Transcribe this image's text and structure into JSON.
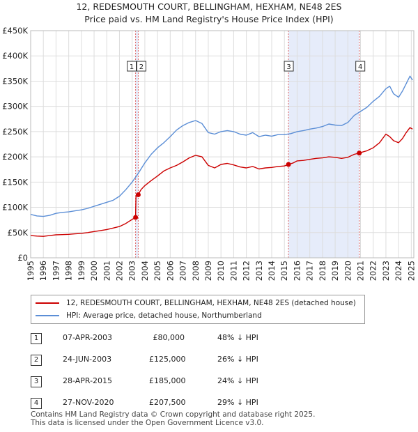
{
  "header": {
    "title": "12, REDESMOUTH COURT, BELLINGHAM, HEXHAM, NE48 2ES",
    "subtitle": "Price paid vs. HM Land Registry's House Price Index (HPI)"
  },
  "colors": {
    "property_line": "#cc0000",
    "hpi_line": "#5b8ed6",
    "shade": "#dde6f8",
    "marker_line": "#dd6666"
  },
  "chart_data": {
    "type": "line",
    "title": "Price paid vs. HM Land Registry's House Price Index (HPI)",
    "xlim": [
      1995,
      2025.2
    ],
    "ylim": [
      0,
      450000
    ],
    "x_ticks": [
      "1995",
      "1996",
      "1997",
      "1998",
      "1999",
      "2000",
      "2001",
      "2002",
      "2003",
      "2004",
      "2005",
      "2006",
      "2007",
      "2008",
      "2009",
      "2010",
      "2011",
      "2012",
      "2013",
      "2014",
      "2015",
      "2016",
      "2017",
      "2018",
      "2019",
      "2020",
      "2021",
      "2022",
      "2023",
      "2024",
      "2025"
    ],
    "y_ticks": [
      {
        "value": 0,
        "label": "£0"
      },
      {
        "value": 50000,
        "label": "£50K"
      },
      {
        "value": 100000,
        "label": "£100K"
      },
      {
        "value": 150000,
        "label": "£150K"
      },
      {
        "value": 200000,
        "label": "£200K"
      },
      {
        "value": 250000,
        "label": "£250K"
      },
      {
        "value": 300000,
        "label": "£300K"
      },
      {
        "value": 350000,
        "label": "£350K"
      },
      {
        "value": 400000,
        "label": "£400K"
      },
      {
        "value": 450000,
        "label": "£450K"
      }
    ],
    "grid": true,
    "shaded_ranges": [
      [
        2003.27,
        2003.48
      ],
      [
        2015.32,
        2020.9
      ]
    ],
    "series": [
      {
        "name": "12, REDESMOUTH COURT, BELLINGHAM, HEXHAM, NE48 2ES (detached house)",
        "color": "#cc0000",
        "points": [
          [
            1995.0,
            44000
          ],
          [
            1995.5,
            43000
          ],
          [
            1996.0,
            42500
          ],
          [
            1996.5,
            44000
          ],
          [
            1997.0,
            45500
          ],
          [
            1997.5,
            46000
          ],
          [
            1998.0,
            46500
          ],
          [
            1998.5,
            47500
          ],
          [
            1999.0,
            48500
          ],
          [
            1999.5,
            50000
          ],
          [
            2000.0,
            52000
          ],
          [
            2000.5,
            54000
          ],
          [
            2001.0,
            56000
          ],
          [
            2001.5,
            59000
          ],
          [
            2002.0,
            62000
          ],
          [
            2002.5,
            68000
          ],
          [
            2003.0,
            76000
          ],
          [
            2003.27,
            80000
          ],
          [
            2003.3,
            122000
          ],
          [
            2003.48,
            125000
          ],
          [
            2003.7,
            135000
          ],
          [
            2004.0,
            143000
          ],
          [
            2004.5,
            153000
          ],
          [
            2005.0,
            162000
          ],
          [
            2005.5,
            172000
          ],
          [
            2006.0,
            178000
          ],
          [
            2006.5,
            183000
          ],
          [
            2007.0,
            190000
          ],
          [
            2007.5,
            198000
          ],
          [
            2008.0,
            203000
          ],
          [
            2008.5,
            200000
          ],
          [
            2009.0,
            183000
          ],
          [
            2009.5,
            178000
          ],
          [
            2010.0,
            185000
          ],
          [
            2010.5,
            187000
          ],
          [
            2011.0,
            184000
          ],
          [
            2011.5,
            180000
          ],
          [
            2012.0,
            178000
          ],
          [
            2012.5,
            181000
          ],
          [
            2013.0,
            176000
          ],
          [
            2013.5,
            178000
          ],
          [
            2014.0,
            179000
          ],
          [
            2014.5,
            181000
          ],
          [
            2015.0,
            182000
          ],
          [
            2015.32,
            185000
          ],
          [
            2015.7,
            188000
          ],
          [
            2016.0,
            192000
          ],
          [
            2016.5,
            193000
          ],
          [
            2017.0,
            195000
          ],
          [
            2017.5,
            197000
          ],
          [
            2018.0,
            198000
          ],
          [
            2018.5,
            200000
          ],
          [
            2019.0,
            199000
          ],
          [
            2019.5,
            197000
          ],
          [
            2020.0,
            199000
          ],
          [
            2020.5,
            205000
          ],
          [
            2020.9,
            207500
          ],
          [
            2021.2,
            210000
          ],
          [
            2021.5,
            212000
          ],
          [
            2022.0,
            218000
          ],
          [
            2022.5,
            228000
          ],
          [
            2023.0,
            245000
          ],
          [
            2023.3,
            240000
          ],
          [
            2023.6,
            232000
          ],
          [
            2024.0,
            228000
          ],
          [
            2024.3,
            236000
          ],
          [
            2024.6,
            248000
          ],
          [
            2024.9,
            258000
          ],
          [
            2025.1,
            255000
          ]
        ]
      },
      {
        "name": "HPI: Average price, detached house, Northumberland",
        "color": "#5b8ed6",
        "points": [
          [
            1995.0,
            86000
          ],
          [
            1995.5,
            83000
          ],
          [
            1996.0,
            82000
          ],
          [
            1996.5,
            84000
          ],
          [
            1997.0,
            88000
          ],
          [
            1997.5,
            90000
          ],
          [
            1998.0,
            91000
          ],
          [
            1998.5,
            93000
          ],
          [
            1999.0,
            95000
          ],
          [
            1999.5,
            98000
          ],
          [
            2000.0,
            102000
          ],
          [
            2000.5,
            106000
          ],
          [
            2001.0,
            110000
          ],
          [
            2001.5,
            114000
          ],
          [
            2002.0,
            122000
          ],
          [
            2002.5,
            135000
          ],
          [
            2003.0,
            150000
          ],
          [
            2003.5,
            168000
          ],
          [
            2004.0,
            188000
          ],
          [
            2004.5,
            205000
          ],
          [
            2005.0,
            218000
          ],
          [
            2005.5,
            228000
          ],
          [
            2006.0,
            240000
          ],
          [
            2006.5,
            253000
          ],
          [
            2007.0,
            262000
          ],
          [
            2007.5,
            268000
          ],
          [
            2008.0,
            272000
          ],
          [
            2008.5,
            266000
          ],
          [
            2009.0,
            248000
          ],
          [
            2009.5,
            245000
          ],
          [
            2010.0,
            250000
          ],
          [
            2010.5,
            252000
          ],
          [
            2011.0,
            250000
          ],
          [
            2011.5,
            245000
          ],
          [
            2012.0,
            243000
          ],
          [
            2012.5,
            248000
          ],
          [
            2013.0,
            240000
          ],
          [
            2013.5,
            243000
          ],
          [
            2014.0,
            241000
          ],
          [
            2014.5,
            244000
          ],
          [
            2015.0,
            244000
          ],
          [
            2015.5,
            246000
          ],
          [
            2016.0,
            250000
          ],
          [
            2016.5,
            252000
          ],
          [
            2017.0,
            255000
          ],
          [
            2017.5,
            257000
          ],
          [
            2018.0,
            260000
          ],
          [
            2018.5,
            265000
          ],
          [
            2019.0,
            263000
          ],
          [
            2019.5,
            262000
          ],
          [
            2020.0,
            268000
          ],
          [
            2020.5,
            282000
          ],
          [
            2021.0,
            290000
          ],
          [
            2021.5,
            298000
          ],
          [
            2022.0,
            310000
          ],
          [
            2022.5,
            320000
          ],
          [
            2023.0,
            335000
          ],
          [
            2023.3,
            340000
          ],
          [
            2023.6,
            325000
          ],
          [
            2024.0,
            318000
          ],
          [
            2024.3,
            330000
          ],
          [
            2024.6,
            345000
          ],
          [
            2024.9,
            360000
          ],
          [
            2025.1,
            352000
          ]
        ]
      }
    ],
    "sale_markers": [
      {
        "id": "1",
        "x": 2003.27,
        "y": 80000
      },
      {
        "id": "2",
        "x": 2003.48,
        "y": 125000
      },
      {
        "id": "3",
        "x": 2015.32,
        "y": 185000
      },
      {
        "id": "4",
        "x": 2020.9,
        "y": 207500
      }
    ]
  },
  "legend": {
    "items": [
      {
        "label": "12, REDESMOUTH COURT, BELLINGHAM, HEXHAM, NE48 2ES (detached house)",
        "color": "#cc0000"
      },
      {
        "label": "HPI: Average price, detached house, Northumberland",
        "color": "#5b8ed6"
      }
    ]
  },
  "sales": [
    {
      "num": "1",
      "date": "07-APR-2003",
      "price": "£80,000",
      "hpi": "48% ↓ HPI"
    },
    {
      "num": "2",
      "date": "24-JUN-2003",
      "price": "£125,000",
      "hpi": "26% ↓ HPI"
    },
    {
      "num": "3",
      "date": "28-APR-2015",
      "price": "£185,000",
      "hpi": "24% ↓ HPI"
    },
    {
      "num": "4",
      "date": "27-NOV-2020",
      "price": "£207,500",
      "hpi": "29% ↓ HPI"
    }
  ],
  "footer": {
    "line1": "Contains HM Land Registry data © Crown copyright and database right 2025.",
    "line2": "This data is licensed under the Open Government Licence v3.0."
  }
}
